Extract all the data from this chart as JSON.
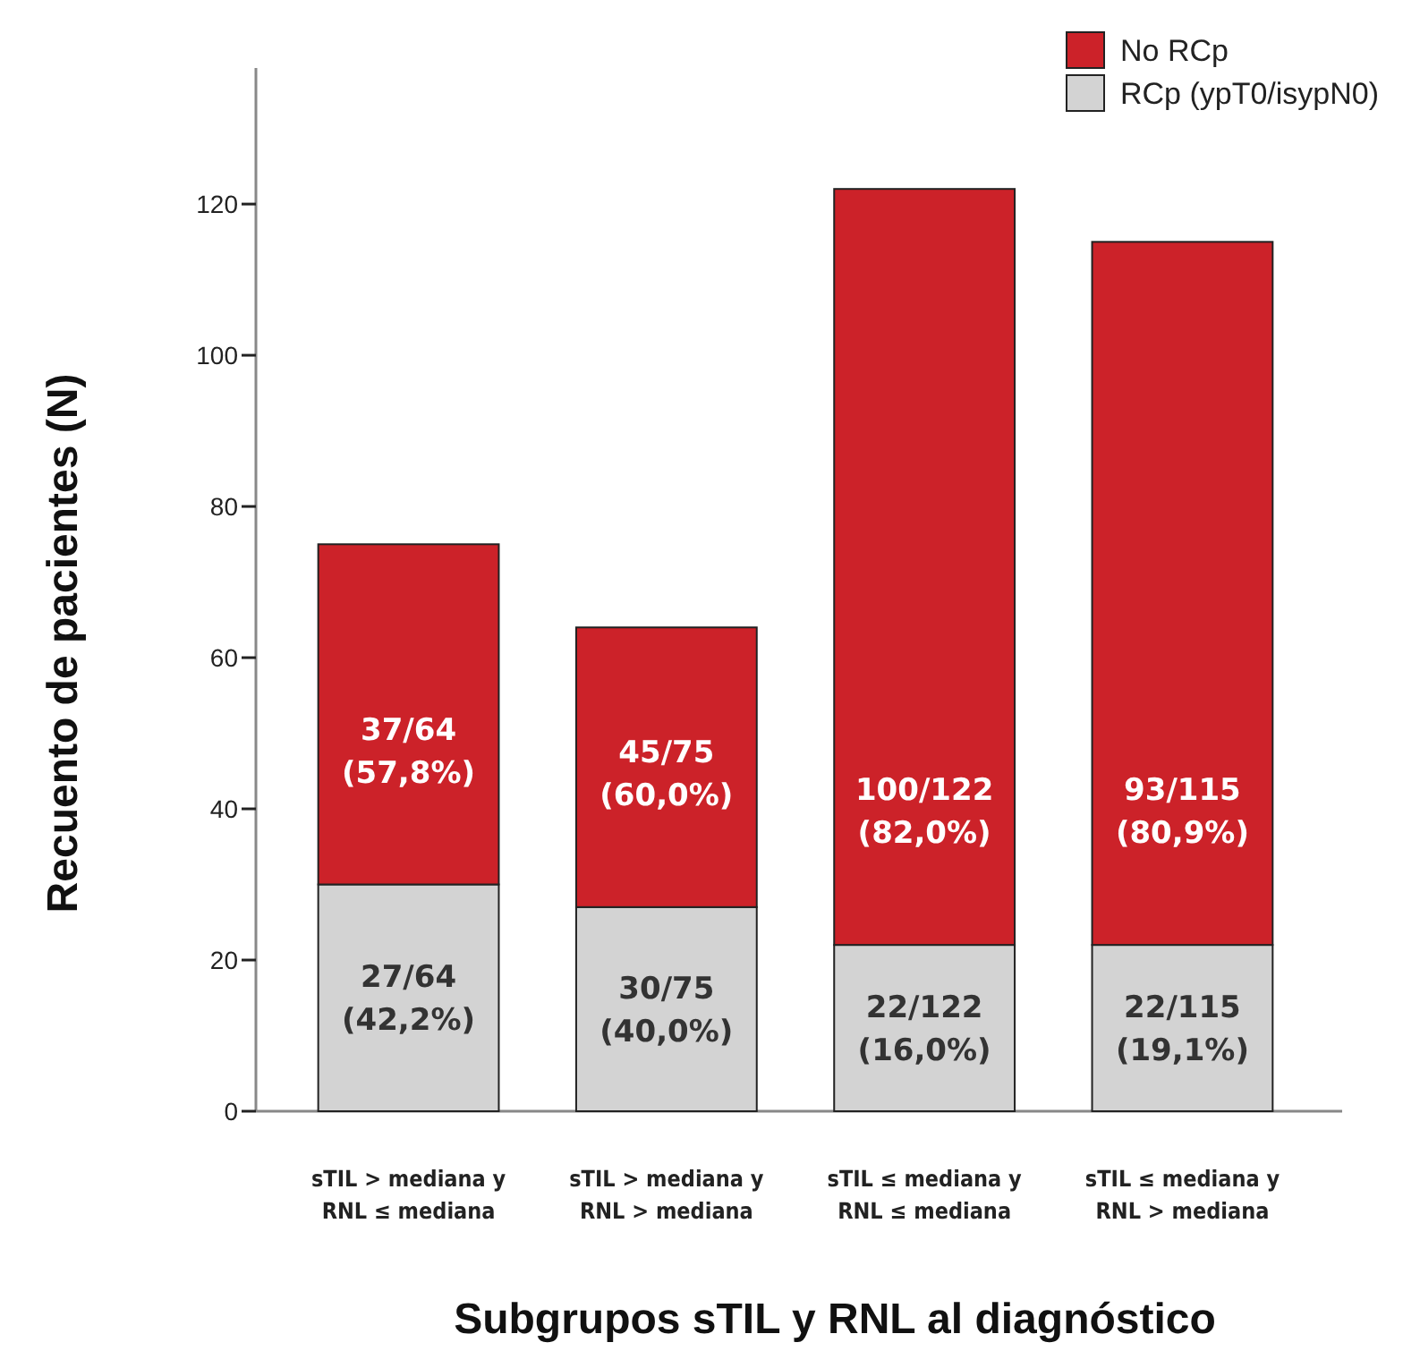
{
  "chart_data": {
    "type": "bar",
    "stacked": true,
    "xlabel": "Subgrupos sTIL y RNL al diagnóstico",
    "ylabel": "Recuento de pacientes (N)",
    "categories": [
      "sTIL > mediana y RNL ≤ mediana",
      "sTIL > mediana y RNL > mediana",
      "sTIL ≤ mediana y RNL ≤ mediana",
      "sTIL ≤ mediana y RNL > mediana"
    ],
    "series": [
      {
        "name": "RCp (ypT0/isypN0)",
        "color": "#d3d3d3",
        "values": [
          30,
          27,
          22,
          22
        ]
      },
      {
        "name": "No RCp",
        "color": "#cc2229",
        "values": [
          45,
          37,
          100,
          93
        ]
      }
    ],
    "annotations": [
      "27/64 (42,2%)",
      "30/75 (40,0%)",
      "22/122 (16,0%)",
      "22/115 (19,1%)",
      "37/64 (57,8%)",
      "45/75 (60,0%)",
      "100/122 (82,0%)",
      "93/115 (80,9%)"
    ],
    "ylim": [
      0,
      138
    ],
    "yticks": [
      0,
      20,
      40,
      60,
      80,
      100,
      120
    ],
    "legend": "top right",
    "grid": false
  }
}
